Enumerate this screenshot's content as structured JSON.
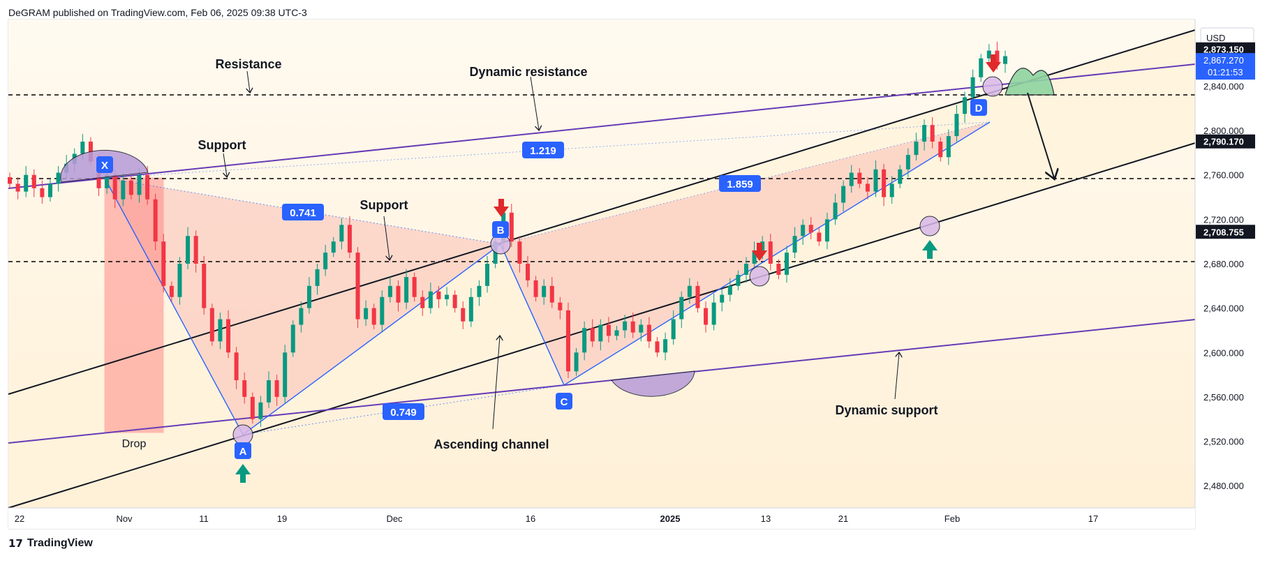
{
  "header": {
    "published": "DeGRAM published on TradingView.com, Feb 06, 2025 09:38 UTC-3"
  },
  "footer": {
    "brand": "TradingView",
    "logo_icon": "tradingview-logo-icon"
  },
  "colors": {
    "up": "#089981",
    "down": "#f23645",
    "level": "#000000",
    "purple": "#673ab7",
    "blue": "#2962ff",
    "label_bg": "#2962ff",
    "channel_fill": "#fff3dc",
    "pattern_fill": "#f7a7a0",
    "arrow_red": "#e0292b",
    "arrow_green": "#089981",
    "price_tag_bg": "#131722",
    "current_bg": "#2962ff"
  },
  "chart_data": {
    "type": "candlestick",
    "currency": "USD",
    "x_axis_labels": [
      "22",
      "Nov",
      "11",
      "19",
      "Dec",
      "16",
      "2025",
      "13",
      "21",
      "Feb",
      "17"
    ],
    "y_axis_ticks": [
      "2,840.000",
      "2,800.000",
      "2,760.000",
      "2,720.000",
      "2,680.000",
      "2,640.000",
      "2,600.000",
      "2,560.000",
      "2,520.000",
      "2,480.000"
    ],
    "ylim": [
      2460,
      2900
    ],
    "horizontal_levels": [
      2873.15,
      2790.17,
      2708.755
    ],
    "price_tags": [
      {
        "text": "2,873.150",
        "value": 2873.15,
        "style": "dark"
      },
      {
        "text": "2,790.170",
        "value": 2790.17,
        "style": "dark"
      },
      {
        "text": "2,708.755",
        "value": 2708.755,
        "style": "dark"
      }
    ],
    "current_price": {
      "price": "2,867.270",
      "countdown": "01:21:53",
      "value": 2867.27
    },
    "pattern_points": [
      {
        "label": "X",
        "date": "Oct 30",
        "price": 2790
      },
      {
        "label": "A",
        "date": "Nov 14",
        "price": 2537
      },
      {
        "label": "B",
        "date": "Dec 12",
        "price": 2726
      },
      {
        "label": "C",
        "date": "Dec 19",
        "price": 2583
      },
      {
        "label": "D",
        "date": "Feb 04",
        "price": 2848
      }
    ],
    "ratios": [
      "0.741",
      "1.219",
      "1.859",
      "0.749"
    ],
    "annotations": [
      "Resistance",
      "Dynamic resistance",
      "Support",
      "Support",
      "Drop",
      "Ascending channel",
      "Dynamic support"
    ],
    "ohlc_series": [
      [
        2758,
        2752
      ],
      [
        2752,
        2745
      ],
      [
        2745,
        2760
      ],
      [
        2760,
        2748
      ],
      [
        2748,
        2740
      ],
      [
        2740,
        2752
      ],
      [
        2752,
        2762
      ],
      [
        2762,
        2770
      ],
      [
        2770,
        2779
      ],
      [
        2779,
        2790
      ],
      [
        2790,
        2772
      ],
      [
        2772,
        2748
      ],
      [
        2748,
        2760
      ],
      [
        2760,
        2738
      ],
      [
        2738,
        2755
      ],
      [
        2755,
        2742
      ],
      [
        2742,
        2760
      ],
      [
        2760,
        2738
      ],
      [
        2738,
        2700
      ],
      [
        2700,
        2660
      ],
      [
        2660,
        2650
      ],
      [
        2650,
        2680
      ],
      [
        2680,
        2705
      ],
      [
        2705,
        2680
      ],
      [
        2680,
        2640
      ],
      [
        2640,
        2610
      ],
      [
        2610,
        2630
      ],
      [
        2630,
        2600
      ],
      [
        2600,
        2575
      ],
      [
        2575,
        2560
      ],
      [
        2560,
        2540
      ],
      [
        2540,
        2555
      ],
      [
        2555,
        2575
      ],
      [
        2575,
        2560
      ],
      [
        2560,
        2600
      ],
      [
        2600,
        2625
      ],
      [
        2625,
        2640
      ],
      [
        2640,
        2660
      ],
      [
        2660,
        2675
      ],
      [
        2675,
        2690
      ],
      [
        2690,
        2700
      ],
      [
        2700,
        2715
      ],
      [
        2715,
        2690
      ],
      [
        2690,
        2630
      ],
      [
        2630,
        2640
      ],
      [
        2640,
        2625
      ],
      [
        2625,
        2650
      ],
      [
        2650,
        2660
      ],
      [
        2660,
        2645
      ],
      [
        2645,
        2668
      ],
      [
        2668,
        2650
      ],
      [
        2650,
        2640
      ],
      [
        2640,
        2655
      ],
      [
        2655,
        2648
      ],
      [
        2648,
        2652
      ],
      [
        2652,
        2640
      ],
      [
        2640,
        2628
      ],
      [
        2628,
        2650
      ],
      [
        2650,
        2660
      ],
      [
        2660,
        2680
      ],
      [
        2680,
        2700
      ],
      [
        2700,
        2726
      ],
      [
        2726,
        2700
      ],
      [
        2700,
        2680
      ],
      [
        2680,
        2665
      ],
      [
        2665,
        2650
      ],
      [
        2650,
        2660
      ],
      [
        2660,
        2645
      ],
      [
        2645,
        2638
      ],
      [
        2638,
        2583
      ],
      [
        2583,
        2600
      ],
      [
        2600,
        2622
      ],
      [
        2622,
        2610
      ],
      [
        2610,
        2625
      ],
      [
        2625,
        2615
      ],
      [
        2615,
        2620
      ],
      [
        2620,
        2628
      ],
      [
        2628,
        2618
      ],
      [
        2618,
        2625
      ],
      [
        2625,
        2610
      ],
      [
        2610,
        2600
      ],
      [
        2600,
        2612
      ],
      [
        2612,
        2630
      ],
      [
        2630,
        2650
      ],
      [
        2650,
        2660
      ],
      [
        2660,
        2640
      ],
      [
        2640,
        2625
      ],
      [
        2625,
        2645
      ],
      [
        2645,
        2652
      ],
      [
        2652,
        2660
      ],
      [
        2660,
        2670
      ],
      [
        2670,
        2680
      ],
      [
        2680,
        2692
      ],
      [
        2692,
        2700
      ],
      [
        2700,
        2680
      ],
      [
        2680,
        2670
      ],
      [
        2670,
        2690
      ],
      [
        2690,
        2705
      ],
      [
        2705,
        2715
      ],
      [
        2715,
        2708
      ],
      [
        2708,
        2700
      ],
      [
        2700,
        2720
      ],
      [
        2720,
        2735
      ],
      [
        2735,
        2750
      ],
      [
        2750,
        2762
      ],
      [
        2762,
        2752
      ],
      [
        2752,
        2745
      ],
      [
        2745,
        2765
      ],
      [
        2765,
        2740
      ],
      [
        2740,
        2752
      ],
      [
        2752,
        2765
      ],
      [
        2765,
        2778
      ],
      [
        2778,
        2790
      ],
      [
        2790,
        2805
      ],
      [
        2805,
        2790
      ],
      [
        2790,
        2776
      ],
      [
        2776,
        2795
      ],
      [
        2795,
        2815
      ],
      [
        2815,
        2830
      ],
      [
        2830,
        2848
      ],
      [
        2848,
        2865
      ],
      [
        2865,
        2872
      ],
      [
        2872,
        2860
      ],
      [
        2860,
        2867
      ]
    ]
  },
  "markers": {
    "red_down_arrows": [
      "arrow-down-icon",
      "arrow-down-icon",
      "arrow-down-icon"
    ],
    "green_up_arrows": [
      "arrow-up-icon",
      "arrow-up-icon"
    ]
  }
}
